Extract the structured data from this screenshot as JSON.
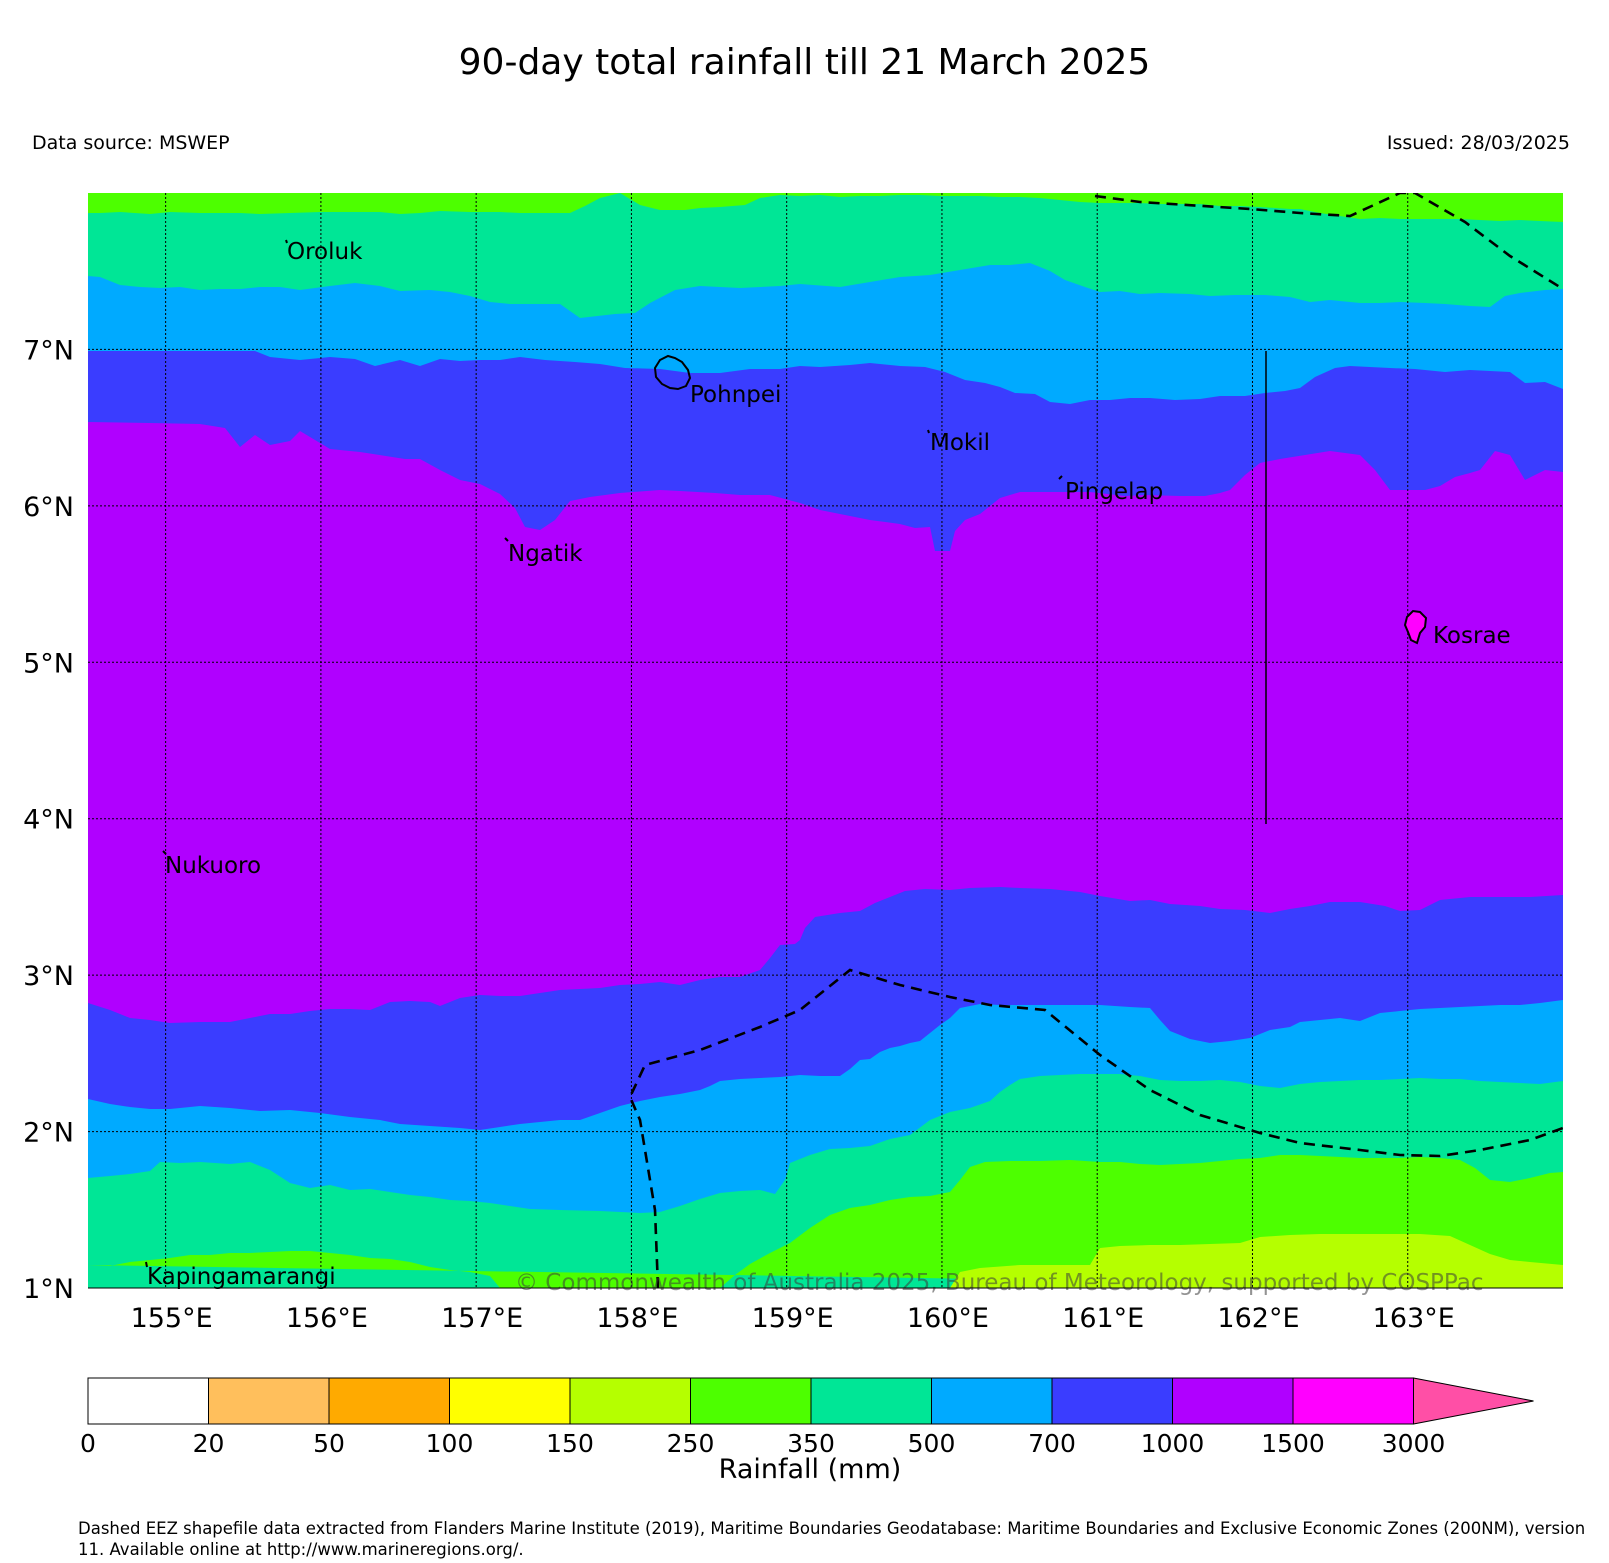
{
  "header": {
    "title": "90-day total rainfall till 21 March 2025",
    "data_source": "Data source: MSWEP",
    "issued": "Issued: 28/03/2025"
  },
  "map": {
    "lon_range": [
      154.5,
      164.0
    ],
    "lat_range": [
      1.0,
      8.0
    ],
    "lat_ticks": [
      "1°N",
      "2°N",
      "3°N",
      "4°N",
      "5°N",
      "6°N",
      "7°N"
    ],
    "lon_ticks": [
      "155°E",
      "156°E",
      "157°E",
      "158°E",
      "159°E",
      "160°E",
      "161°E",
      "162°E",
      "163°E"
    ],
    "islands": [
      {
        "name": "Oroluk"
      },
      {
        "name": "Pohnpei"
      },
      {
        "name": "Mokil"
      },
      {
        "name": "Pingelap"
      },
      {
        "name": "Ngatik"
      },
      {
        "name": "Kosrae"
      },
      {
        "name": "Nukuoro"
      },
      {
        "name": "Kapingamarangi"
      }
    ],
    "copyright": "© Commonwealth of Australia 2025, Bureau of Meteorology, supported by COSPPac"
  },
  "colorbar": {
    "label": "Rainfall (mm)",
    "tick_labels": [
      "0",
      "20",
      "50",
      "100",
      "150",
      "250",
      "350",
      "500",
      "700",
      "1000",
      "1500",
      "3000"
    ],
    "colors": [
      "#ffffff",
      "#ffbf5c",
      "#ffaa00",
      "#ffff00",
      "#b5ff00",
      "#4dff00",
      "#00e696",
      "#00aaff",
      "#3a3dff",
      "#b000ff",
      "#ff00ff",
      "#ff4fa6"
    ]
  },
  "footnote": {
    "text": "Dashed EEZ shapefile data extracted from Flanders Marine Institute (2019), Maritime Boundaries Geodatabase: Maritime Boundaries and Exclusive Economic Zones (200NM), version 11. Available online at http://www.marineregions.org/."
  }
}
